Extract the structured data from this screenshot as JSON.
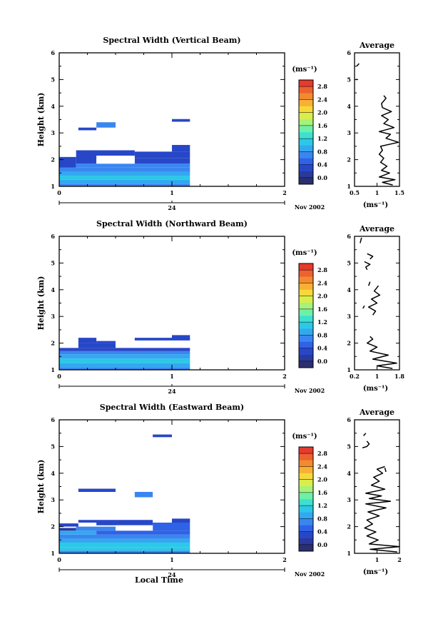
{
  "figure": {
    "date_label": "Nov 2002",
    "day_label": "24",
    "xlabel_bottom": "Local Time"
  },
  "colorscale": {
    "stops": [
      "#2b2f6e",
      "#2a3a9a",
      "#2747c8",
      "#2f62e6",
      "#3a86f0",
      "#33a8f0",
      "#2cc8e8",
      "#3ee0cf",
      "#6ef0a8",
      "#a6f27a",
      "#d8ee4c",
      "#f5d93a",
      "#f8b034",
      "#f38a30",
      "#ec6230",
      "#e53a2e"
    ],
    "ticks": [
      "0.0",
      "0.4",
      "0.8",
      "1.2",
      "1.6",
      "2.0",
      "2.4",
      "2.8"
    ],
    "unit": "(ms⁻¹)"
  },
  "chart_data": [
    {
      "type": "heatmap",
      "title": "Spectral Width (Vertical Beam)",
      "ylabel": "Height (km)",
      "xlim": [
        0,
        2
      ],
      "ylim": [
        1,
        6
      ],
      "x_ticks": [
        "0",
        "1",
        "2"
      ],
      "y_ticks": [
        "1",
        "2",
        "3",
        "4",
        "5",
        "6"
      ],
      "cbar_ticks": [
        "0.0",
        "0.4",
        "0.8",
        "1.2",
        "1.6",
        "2.0",
        "2.4",
        "2.8"
      ],
      "cells": [
        {
          "x0": 0.0,
          "x1": 1.16,
          "y0": 1.0,
          "y1": 1.1,
          "v": 0.8
        },
        {
          "x0": 0.0,
          "x1": 1.16,
          "y0": 1.1,
          "y1": 1.25,
          "v": 1.2
        },
        {
          "x0": 0.3,
          "x1": 1.0,
          "y0": 1.27,
          "y1": 1.33,
          "v": 2.0
        },
        {
          "x0": 0.0,
          "x1": 1.16,
          "y0": 1.25,
          "y1": 1.4,
          "v": 1.3
        },
        {
          "x0": 0.0,
          "x1": 1.16,
          "y0": 1.4,
          "y1": 1.55,
          "v": 1.1
        },
        {
          "x0": 0.0,
          "x1": 1.16,
          "y0": 1.55,
          "y1": 1.7,
          "v": 0.9
        },
        {
          "x0": 0.0,
          "x1": 0.15,
          "y0": 1.7,
          "y1": 2.1,
          "v": 0.6
        },
        {
          "x0": 0.15,
          "x1": 1.16,
          "y0": 1.7,
          "y1": 1.85,
          "v": 0.8
        },
        {
          "x0": 0.15,
          "x1": 0.33,
          "y0": 1.85,
          "y1": 2.15,
          "v": 0.6
        },
        {
          "x0": 0.67,
          "x1": 1.16,
          "y0": 1.85,
          "y1": 2.05,
          "v": 0.6
        },
        {
          "x0": 0.67,
          "x1": 1.16,
          "y0": 2.05,
          "y1": 2.3,
          "v": 0.45
        },
        {
          "x0": 0.15,
          "x1": 0.67,
          "y0": 2.15,
          "y1": 2.35,
          "v": 0.5
        },
        {
          "x0": 1.0,
          "x1": 1.16,
          "y0": 2.3,
          "y1": 2.55,
          "v": 0.5
        },
        {
          "x0": 0.17,
          "x1": 0.33,
          "y0": 3.1,
          "y1": 3.2,
          "v": 0.4
        },
        {
          "x0": 0.33,
          "x1": 0.5,
          "y0": 3.2,
          "y1": 3.4,
          "v": 0.9
        },
        {
          "x0": 1.0,
          "x1": 1.16,
          "y0": 3.42,
          "y1": 3.52,
          "v": 0.4
        }
      ],
      "gaps": [
        {
          "x0": 0.33,
          "x1": 0.67,
          "y0": 1.85,
          "y1": 2.05
        }
      ],
      "average": {
        "title": "Average",
        "xlabel": "(ms⁻¹)",
        "xlim": [
          0.5,
          1.5
        ],
        "x_ticks": [
          "0.5",
          "1",
          "1.5"
        ],
        "y_ticks": [
          "1",
          "2",
          "3",
          "4",
          "5",
          "6"
        ],
        "segments": [
          [
            [
              1.35,
              1.05
            ],
            [
              1.12,
              1.15
            ],
            [
              1.4,
              1.25
            ],
            [
              1.05,
              1.35
            ],
            [
              1.28,
              1.5
            ],
            [
              1.1,
              1.6
            ],
            [
              1.22,
              1.75
            ],
            [
              1.08,
              1.9
            ],
            [
              1.15,
              2.05
            ],
            [
              1.05,
              2.2
            ],
            [
              1.12,
              2.35
            ],
            [
              1.08,
              2.5
            ],
            [
              1.48,
              2.65
            ],
            [
              1.2,
              2.8
            ],
            [
              1.3,
              2.95
            ],
            [
              1.05,
              3.05
            ],
            [
              1.38,
              3.2
            ],
            [
              1.15,
              3.35
            ],
            [
              1.25,
              3.5
            ],
            [
              1.1,
              3.65
            ],
            [
              1.32,
              3.8
            ],
            [
              1.12,
              3.95
            ],
            [
              1.1,
              4.1
            ],
            [
              1.2,
              4.3
            ],
            [
              1.15,
              4.4
            ]
          ],
          [
            [
              0.6,
              5.6
            ],
            [
              0.55,
              5.5
            ]
          ],
          [
            [
              0.57,
              5.0
            ],
            [
              0.52,
              5.0
            ]
          ]
        ]
      }
    },
    {
      "type": "heatmap",
      "title": "Spectral Width (Northward Beam)",
      "ylabel": "Height (km)",
      "xlim": [
        0,
        2
      ],
      "ylim": [
        1,
        6
      ],
      "x_ticks": [
        "0",
        "1",
        "2"
      ],
      "y_ticks": [
        "1",
        "2",
        "3",
        "4",
        "5",
        "6"
      ],
      "cbar_ticks": [
        "0.0",
        "0.4",
        "0.8",
        "1.2",
        "1.6",
        "2.0",
        "2.4",
        "2.8"
      ],
      "cells": [
        {
          "x0": 0.0,
          "x1": 1.16,
          "y0": 1.0,
          "y1": 1.1,
          "v": 0.8
        },
        {
          "x0": 0.0,
          "x1": 1.16,
          "y0": 1.1,
          "y1": 1.25,
          "v": 1.1
        },
        {
          "x0": 0.2,
          "x1": 0.5,
          "y0": 1.27,
          "y1": 1.33,
          "v": 2.0
        },
        {
          "x0": 0.0,
          "x1": 1.16,
          "y0": 1.25,
          "y1": 1.42,
          "v": 1.3
        },
        {
          "x0": 0.0,
          "x1": 1.16,
          "y0": 1.42,
          "y1": 1.58,
          "v": 1.2
        },
        {
          "x0": 0.0,
          "x1": 1.16,
          "y0": 1.58,
          "y1": 1.7,
          "v": 0.9
        },
        {
          "x0": 0.0,
          "x1": 1.16,
          "y0": 1.7,
          "y1": 1.82,
          "v": 0.6
        },
        {
          "x0": 0.17,
          "x1": 0.5,
          "y0": 1.82,
          "y1": 2.0,
          "v": 0.5
        },
        {
          "x0": 0.17,
          "x1": 0.33,
          "y0": 2.0,
          "y1": 2.2,
          "v": 0.55
        },
        {
          "x0": 0.33,
          "x1": 0.5,
          "y0": 2.0,
          "y1": 2.08,
          "v": 0.45
        },
        {
          "x0": 0.67,
          "x1": 1.0,
          "y0": 2.1,
          "y1": 2.2,
          "v": 0.5
        },
        {
          "x0": 1.0,
          "x1": 1.16,
          "y0": 2.1,
          "y1": 2.3,
          "v": 0.45
        }
      ],
      "gaps": [],
      "average": {
        "title": "Average",
        "xlabel": "(ms⁻¹)",
        "xlim": [
          0.2,
          1.8
        ],
        "x_ticks": [
          "0.2",
          "1",
          "1.8"
        ],
        "y_ticks": [
          "1",
          "2",
          "3",
          "4",
          "5",
          "6"
        ],
        "segments": [
          [
            [
              1.55,
              1.05
            ],
            [
              1.0,
              1.15
            ],
            [
              1.7,
              1.25
            ],
            [
              0.85,
              1.4
            ],
            [
              1.4,
              1.55
            ],
            [
              0.75,
              1.7
            ],
            [
              1.0,
              1.85
            ],
            [
              0.65,
              2.0
            ],
            [
              0.85,
              2.15
            ],
            [
              0.75,
              2.25
            ]
          ],
          [
            [
              0.85,
              3.05
            ],
            [
              0.95,
              3.2
            ],
            [
              0.7,
              3.35
            ],
            [
              1.0,
              3.5
            ],
            [
              0.8,
              3.65
            ],
            [
              1.1,
              3.8
            ],
            [
              0.9,
              3.95
            ],
            [
              1.05,
              4.15
            ]
          ],
          [
            [
              0.55,
              3.4
            ],
            [
              0.5,
              3.3
            ]
          ],
          [
            [
              0.75,
              4.3
            ],
            [
              0.7,
              4.15
            ]
          ],
          [
            [
              0.55,
              5.05
            ],
            [
              0.75,
              4.95
            ],
            [
              0.6,
              4.85
            ],
            [
              0.65,
              4.75
            ]
          ],
          [
            [
              0.65,
              5.35
            ],
            [
              0.85,
              5.25
            ],
            [
              0.75,
              5.15
            ]
          ],
          [
            [
              0.45,
              5.95
            ],
            [
              0.4,
              5.75
            ]
          ]
        ]
      }
    },
    {
      "type": "heatmap",
      "title": "Spectral Width (Eastward Beam)",
      "ylabel": "Height (km)",
      "xlim": [
        0,
        2
      ],
      "ylim": [
        1,
        6
      ],
      "x_ticks": [
        "0",
        "1",
        "2"
      ],
      "y_ticks": [
        "1",
        "2",
        "3",
        "4",
        "5",
        "6"
      ],
      "cbar_ticks": [
        "0.0",
        "0.4",
        "0.8",
        "1.2",
        "1.6",
        "2.0",
        "2.4",
        "2.8"
      ],
      "cells": [
        {
          "x0": 0.0,
          "x1": 1.16,
          "y0": 1.0,
          "y1": 1.1,
          "v": 0.9
        },
        {
          "x0": 0.0,
          "x1": 1.16,
          "y0": 1.1,
          "y1": 1.22,
          "v": 1.3
        },
        {
          "x0": 0.15,
          "x1": 0.6,
          "y0": 1.27,
          "y1": 1.33,
          "v": 2.1
        },
        {
          "x0": 0.0,
          "x1": 1.16,
          "y0": 1.22,
          "y1": 1.4,
          "v": 1.4
        },
        {
          "x0": 0.0,
          "x1": 1.16,
          "y0": 1.4,
          "y1": 1.55,
          "v": 1.0
        },
        {
          "x0": 0.0,
          "x1": 1.16,
          "y0": 1.55,
          "y1": 1.7,
          "v": 0.85
        },
        {
          "x0": 0.0,
          "x1": 0.33,
          "y0": 1.7,
          "y1": 1.85,
          "v": 1.1
        },
        {
          "x0": 0.33,
          "x1": 1.16,
          "y0": 1.7,
          "y1": 1.85,
          "v": 0.7
        },
        {
          "x0": 0.0,
          "x1": 0.15,
          "y0": 1.85,
          "y1": 1.95,
          "v": 0.2
        },
        {
          "x0": 0.15,
          "x1": 0.5,
          "y0": 1.85,
          "y1": 2.0,
          "v": 0.8
        },
        {
          "x0": 0.83,
          "x1": 1.16,
          "y0": 1.85,
          "y1": 2.15,
          "v": 0.7
        },
        {
          "x0": 0.0,
          "x1": 0.17,
          "y0": 2.0,
          "y1": 2.12,
          "v": 0.5
        },
        {
          "x0": 0.33,
          "x1": 0.83,
          "y0": 2.05,
          "y1": 2.15,
          "v": 0.55
        },
        {
          "x0": 0.17,
          "x1": 0.83,
          "y0": 2.15,
          "y1": 2.25,
          "v": 0.5
        },
        {
          "x0": 1.0,
          "x1": 1.16,
          "y0": 2.15,
          "y1": 2.3,
          "v": 0.4
        },
        {
          "x0": 0.17,
          "x1": 0.5,
          "y0": 3.3,
          "y1": 3.42,
          "v": 0.45
        },
        {
          "x0": 0.67,
          "x1": 0.83,
          "y0": 3.1,
          "y1": 3.3,
          "v": 0.8
        },
        {
          "x0": 0.83,
          "x1": 1.0,
          "y0": 5.35,
          "y1": 5.45,
          "v": 0.45
        }
      ],
      "gaps": [
        {
          "x0": 0.5,
          "x1": 0.83,
          "y0": 1.85,
          "y1": 2.05
        }
      ],
      "average": {
        "title": "Average",
        "xlabel": "(ms⁻¹)",
        "xlim": [
          0,
          2
        ],
        "x_ticks": [
          "1",
          "2"
        ],
        "y_ticks": [
          "1",
          "2",
          "3",
          "4",
          "5",
          "6"
        ],
        "segments": [
          [
            [
              1.9,
              1.05
            ],
            [
              0.7,
              1.15
            ],
            [
              2.0,
              1.25
            ],
            [
              0.65,
              1.35
            ],
            [
              1.05,
              1.5
            ],
            [
              0.55,
              1.65
            ],
            [
              0.95,
              1.8
            ],
            [
              0.45,
              1.95
            ],
            [
              0.8,
              2.1
            ],
            [
              0.55,
              2.25
            ],
            [
              1.1,
              2.4
            ],
            [
              0.6,
              2.55
            ],
            [
              1.4,
              2.7
            ],
            [
              0.5,
              2.85
            ],
            [
              1.6,
              2.95
            ],
            [
              0.65,
              3.05
            ],
            [
              1.2,
              3.15
            ],
            [
              0.5,
              3.25
            ],
            [
              1.35,
              3.4
            ],
            [
              0.75,
              3.55
            ],
            [
              1.1,
              3.7
            ],
            [
              0.85,
              3.85
            ],
            [
              1.25,
              4.0
            ],
            [
              1.0,
              4.15
            ],
            [
              1.35,
              4.25
            ]
          ],
          [
            [
              0.35,
              4.95
            ],
            [
              0.55,
              5.0
            ],
            [
              0.65,
              5.1
            ],
            [
              0.55,
              5.2
            ]
          ],
          [
            [
              0.4,
              5.4
            ],
            [
              0.5,
              5.5
            ]
          ],
          [
            [
              1.35,
              4.2
            ],
            [
              1.4,
              4.05
            ]
          ]
        ]
      }
    }
  ]
}
